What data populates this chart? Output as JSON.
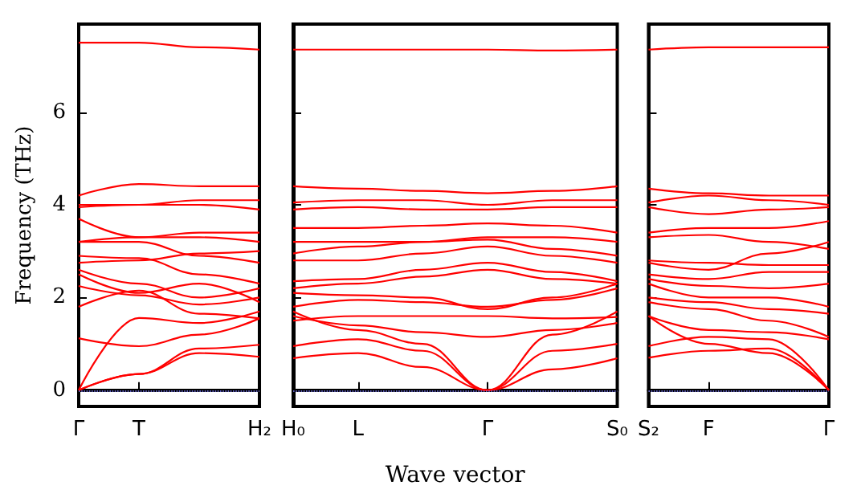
{
  "chart_data": [
    {
      "type": "line",
      "ylabel": "Frequency (THz)",
      "categories": [
        "Γ",
        "T",
        null,
        "H₂"
      ],
      "ylim": [
        -0.35,
        7.9
      ],
      "yticks": [
        0,
        2,
        4,
        6
      ],
      "marker": "none",
      "grid": false,
      "ref_lines": [
        {
          "axis": "y",
          "value": 0,
          "color": "#8080ff",
          "line_style": "dotted"
        }
      ],
      "series": [
        {
          "color": "#ff0000",
          "values": [
            0,
            0.35,
            0.8,
            0.72
          ]
        },
        {
          "color": "#ff0000",
          "values": [
            0,
            0.35,
            0.9,
            0.98
          ]
        },
        {
          "color": "#ff0000",
          "values": [
            0,
            1.56,
            1.45,
            1.7
          ]
        },
        {
          "color": "#ff0000",
          "values": [
            1.12,
            0.95,
            1.2,
            1.55
          ]
        },
        {
          "color": "#ff0000",
          "values": [
            1.8,
            2.15,
            1.65,
            1.55
          ]
        },
        {
          "color": "#ff0000",
          "values": [
            2.25,
            2.05,
            1.85,
            2.0
          ]
        },
        {
          "color": "#ff0000",
          "values": [
            2.5,
            2.1,
            2.3,
            1.9
          ]
        },
        {
          "color": "#ff0000",
          "values": [
            2.6,
            2.3,
            2.0,
            2.2
          ]
        },
        {
          "color": "#ff0000",
          "values": [
            2.9,
            2.85,
            2.5,
            2.3
          ]
        },
        {
          "color": "#ff0000",
          "values": [
            2.75,
            2.8,
            2.95,
            3.0
          ]
        },
        {
          "color": "#ff0000",
          "values": [
            3.2,
            3.2,
            2.9,
            2.75
          ]
        },
        {
          "color": "#ff0000",
          "values": [
            3.2,
            3.3,
            3.4,
            3.4
          ]
        },
        {
          "color": "#ff0000",
          "values": [
            3.7,
            3.3,
            3.3,
            3.2
          ]
        },
        {
          "color": "#ff0000",
          "values": [
            3.95,
            4.0,
            4.0,
            3.9
          ]
        },
        {
          "color": "#ff0000",
          "values": [
            4.0,
            4.0,
            4.1,
            4.1
          ]
        },
        {
          "color": "#ff0000",
          "values": [
            4.2,
            4.45,
            4.4,
            4.4
          ]
        },
        {
          "color": "#ff0000",
          "values": [
            7.5,
            7.5,
            7.4,
            7.35
          ]
        }
      ]
    },
    {
      "type": "line",
      "xlabel": "Wave vector",
      "categories": [
        "H₀",
        "L",
        null,
        "Γ",
        null,
        "S₀"
      ],
      "ylim": [
        -0.35,
        7.9
      ],
      "yticks": [
        {
          "value": 0,
          "label": null
        },
        {
          "value": 2,
          "label": null
        },
        {
          "value": 4,
          "label": null
        },
        {
          "value": 6,
          "label": null
        }
      ],
      "tick_labels": "x",
      "marker": "none",
      "grid": false,
      "ref_lines": [
        {
          "axis": "y",
          "value": 0,
          "color": "#8080ff",
          "line_style": "dotted"
        }
      ],
      "series": [
        {
          "color": "#ff0000",
          "values": [
            0.69,
            0.8,
            0.5,
            0,
            0.45,
            0.69
          ]
        },
        {
          "color": "#ff0000",
          "values": [
            0.95,
            1.1,
            0.85,
            0,
            0.85,
            1.0
          ]
        },
        {
          "color": "#ff0000",
          "values": [
            1.7,
            1.3,
            1.0,
            0,
            1.2,
            1.7
          ]
        },
        {
          "color": "#ff0000",
          "values": [
            1.6,
            1.4,
            1.25,
            1.15,
            1.3,
            1.45
          ]
        },
        {
          "color": "#ff0000",
          "values": [
            1.5,
            1.6,
            1.6,
            1.6,
            1.55,
            1.58
          ]
        },
        {
          "color": "#ff0000",
          "values": [
            1.8,
            1.95,
            1.9,
            1.8,
            1.95,
            2.2
          ]
        },
        {
          "color": "#ff0000",
          "values": [
            2.1,
            2.05,
            2.0,
            1.75,
            2.0,
            2.3
          ]
        },
        {
          "color": "#ff0000",
          "values": [
            2.2,
            2.3,
            2.45,
            2.6,
            2.4,
            2.3
          ]
        },
        {
          "color": "#ff0000",
          "values": [
            2.35,
            2.4,
            2.6,
            2.75,
            2.55,
            2.35
          ]
        },
        {
          "color": "#ff0000",
          "values": [
            2.8,
            2.8,
            2.95,
            3.1,
            2.9,
            2.75
          ]
        },
        {
          "color": "#ff0000",
          "values": [
            2.95,
            3.1,
            3.2,
            3.25,
            3.05,
            2.9
          ]
        },
        {
          "color": "#ff0000",
          "values": [
            3.2,
            3.2,
            3.2,
            3.3,
            3.3,
            3.2
          ]
        },
        {
          "color": "#ff0000",
          "values": [
            3.5,
            3.5,
            3.55,
            3.6,
            3.55,
            3.4
          ]
        },
        {
          "color": "#ff0000",
          "values": [
            3.9,
            3.95,
            3.9,
            3.9,
            3.95,
            3.95
          ]
        },
        {
          "color": "#ff0000",
          "values": [
            4.05,
            4.1,
            4.1,
            4.0,
            4.1,
            4.1
          ]
        },
        {
          "color": "#ff0000",
          "values": [
            4.4,
            4.35,
            4.3,
            4.25,
            4.3,
            4.4
          ]
        },
        {
          "color": "#ff0000",
          "values": [
            7.35,
            7.35,
            7.35,
            7.35,
            7.33,
            7.35
          ]
        }
      ]
    },
    {
      "type": "line",
      "categories": [
        "S₂",
        "F",
        null,
        "Γ"
      ],
      "ylim": [
        -0.35,
        7.9
      ],
      "yticks": [
        {
          "value": 0,
          "label": null
        },
        {
          "value": 2,
          "label": null
        },
        {
          "value": 4,
          "label": null
        },
        {
          "value": 6,
          "label": null
        }
      ],
      "tick_labels": "x",
      "marker": "none",
      "grid": false,
      "ref_lines": [
        {
          "axis": "y",
          "value": 0,
          "color": "#8080ff",
          "line_style": "dotted"
        }
      ],
      "series": [
        {
          "color": "#ff0000",
          "values": [
            0.7,
            0.85,
            0.9,
            0
          ]
        },
        {
          "color": "#ff0000",
          "values": [
            0.95,
            1.15,
            1.1,
            0
          ]
        },
        {
          "color": "#ff0000",
          "values": [
            1.6,
            1.0,
            0.8,
            0
          ]
        },
        {
          "color": "#ff0000",
          "values": [
            1.6,
            1.3,
            1.25,
            1.1
          ]
        },
        {
          "color": "#ff0000",
          "values": [
            1.9,
            1.75,
            1.5,
            1.15
          ]
        },
        {
          "color": "#ff0000",
          "values": [
            2.0,
            1.9,
            1.75,
            1.65
          ]
        },
        {
          "color": "#ff0000",
          "values": [
            2.3,
            2.0,
            2.0,
            1.8
          ]
        },
        {
          "color": "#ff0000",
          "values": [
            2.4,
            2.25,
            2.2,
            2.3
          ]
        },
        {
          "color": "#ff0000",
          "values": [
            2.5,
            2.4,
            2.55,
            2.55
          ]
        },
        {
          "color": "#ff0000",
          "values": [
            2.8,
            2.75,
            2.7,
            2.7
          ]
        },
        {
          "color": "#ff0000",
          "values": [
            2.75,
            2.6,
            2.95,
            3.2
          ]
        },
        {
          "color": "#ff0000",
          "values": [
            3.3,
            3.35,
            3.2,
            3.05
          ]
        },
        {
          "color": "#ff0000",
          "values": [
            3.4,
            3.5,
            3.5,
            3.65
          ]
        },
        {
          "color": "#ff0000",
          "values": [
            3.95,
            3.8,
            3.9,
            3.95
          ]
        },
        {
          "color": "#ff0000",
          "values": [
            4.05,
            4.2,
            4.1,
            4.0
          ]
        },
        {
          "color": "#ff0000",
          "values": [
            4.35,
            4.25,
            4.2,
            4.2
          ]
        },
        {
          "color": "#ff0000",
          "values": [
            7.35,
            7.4,
            7.4,
            7.4
          ]
        }
      ]
    }
  ]
}
